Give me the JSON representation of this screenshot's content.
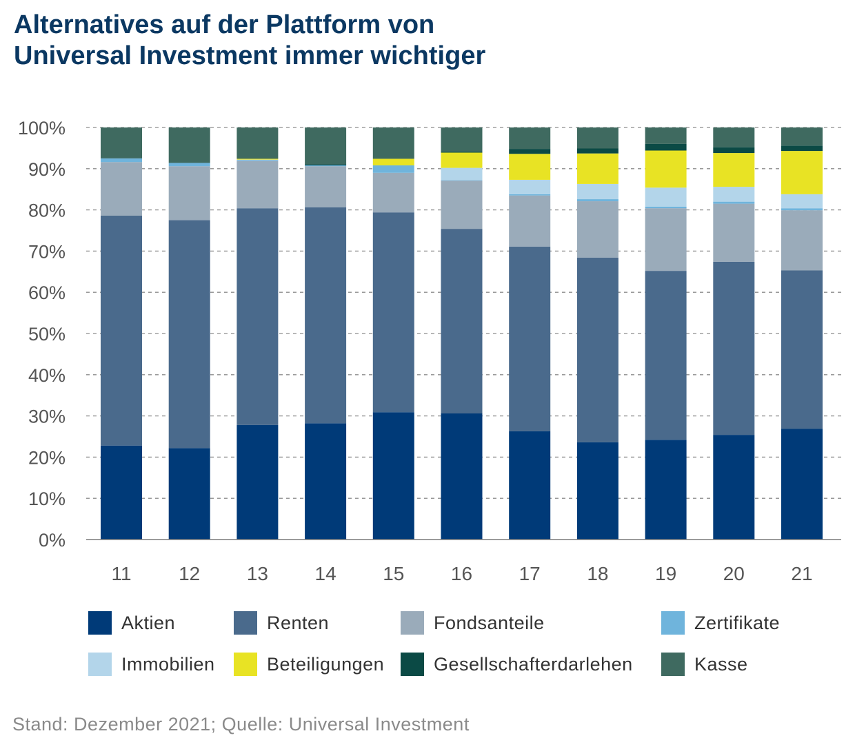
{
  "header": {
    "title_line1": "Alternatives auf der Plattform von",
    "title_line2": "Universal Investment immer wichtiger"
  },
  "footer": {
    "source": "Stand: Dezember 2021; Quelle: Universal Investment"
  },
  "chart_data": {
    "type": "bar",
    "stacked": true,
    "title": "Alternatives auf der Plattform von Universal Investment immer wichtiger",
    "xlabel": "",
    "ylabel": "",
    "ylim": [
      0,
      100
    ],
    "y_ticks": [
      "0%",
      "10%",
      "20%",
      "30%",
      "40%",
      "50%",
      "60%",
      "70%",
      "80%",
      "90%",
      "100%"
    ],
    "grid": "horizontal dashed",
    "legend_position": "bottom",
    "categories": [
      "11",
      "12",
      "13",
      "14",
      "15",
      "16",
      "17",
      "18",
      "19",
      "20",
      "21"
    ],
    "series": [
      {
        "name": "Aktien",
        "color": "#003a78",
        "values": [
          22.8,
          22.2,
          27.8,
          28.2,
          30.9,
          30.6,
          26.3,
          23.6,
          24.2,
          25.4,
          26.9
        ]
      },
      {
        "name": "Renten",
        "color": "#4a6a8c",
        "values": [
          55.8,
          55.3,
          52.6,
          52.4,
          48.5,
          44.8,
          44.8,
          44.8,
          41.0,
          42.0,
          38.4
        ]
      },
      {
        "name": "Fondsanteile",
        "color": "#9aabba",
        "values": [
          13.0,
          13.1,
          11.5,
          10.0,
          9.6,
          11.7,
          12.4,
          13.7,
          15.2,
          14.1,
          14.6
        ]
      },
      {
        "name": "Zertifikate",
        "color": "#6fb4dc",
        "values": [
          0.9,
          0.8,
          0.2,
          0.2,
          1.8,
          0.1,
          0.3,
          0.5,
          0.4,
          0.5,
          0.5
        ]
      },
      {
        "name": "Immobilien",
        "color": "#b3d5ea",
        "values": [
          0.0,
          0.0,
          0.1,
          0.0,
          0.0,
          3.0,
          3.5,
          3.7,
          4.6,
          3.6,
          3.4
        ]
      },
      {
        "name": "Beteiligungen",
        "color": "#e8e324",
        "values": [
          0.0,
          0.0,
          0.2,
          0.0,
          1.6,
          3.7,
          6.3,
          7.4,
          9.0,
          8.2,
          10.5
        ]
      },
      {
        "name": "Gesellschafterdarlehen",
        "color": "#0b4a45",
        "values": [
          0.0,
          0.0,
          0.0,
          0.3,
          0.0,
          0.3,
          1.2,
          1.2,
          1.6,
          1.4,
          1.3
        ]
      },
      {
        "name": "Kasse",
        "color": "#3f6a60",
        "values": [
          7.5,
          8.6,
          7.6,
          8.9,
          7.6,
          5.8,
          5.2,
          5.1,
          4.0,
          4.8,
          4.4
        ]
      }
    ]
  }
}
